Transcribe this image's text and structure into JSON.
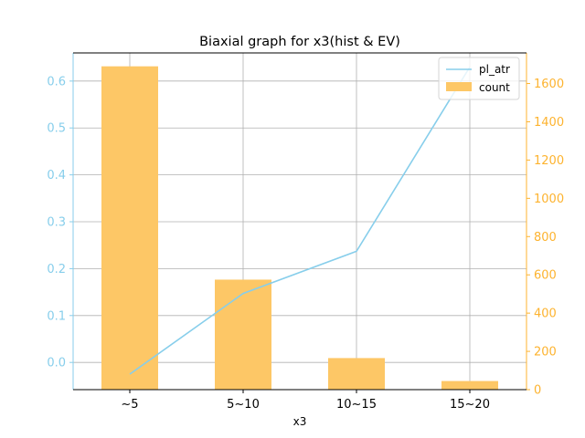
{
  "chart_data": {
    "type": "bar",
    "title": "Biaxial graph for x3(hist & EV)",
    "xlabel": "x3",
    "ylabel_left": "",
    "ylabel_right": "",
    "categories": [
      "~5",
      "5~10",
      "10~15",
      "15~20"
    ],
    "series": [
      {
        "name": "count",
        "chart_type": "bar",
        "axis": "right",
        "color": "#fdc766",
        "values": [
          1690,
          575,
          165,
          45
        ]
      },
      {
        "name": "pl_atr",
        "chart_type": "line",
        "axis": "left",
        "color": "#87ceeb",
        "values": [
          -0.025,
          0.147,
          0.237,
          0.63
        ]
      }
    ],
    "left_axis": {
      "ylim": [
        -0.058,
        0.66
      ],
      "ticks": [
        0.0,
        0.1,
        0.2,
        0.3,
        0.4,
        0.5,
        0.6
      ],
      "tick_labels": [
        "0.0",
        "0.1",
        "0.2",
        "0.3",
        "0.4",
        "0.5",
        "0.6"
      ],
      "color": "#87ceeb"
    },
    "right_axis": {
      "ylim": [
        0,
        1760
      ],
      "ticks": [
        0,
        200,
        400,
        600,
        800,
        1000,
        1200,
        1400,
        1600
      ],
      "tick_labels": [
        "0",
        "200",
        "400",
        "600",
        "800",
        "1000",
        "1200",
        "1400",
        "1600"
      ],
      "color": "#fdb32f"
    },
    "grid": true,
    "legend_position": "top-right"
  }
}
